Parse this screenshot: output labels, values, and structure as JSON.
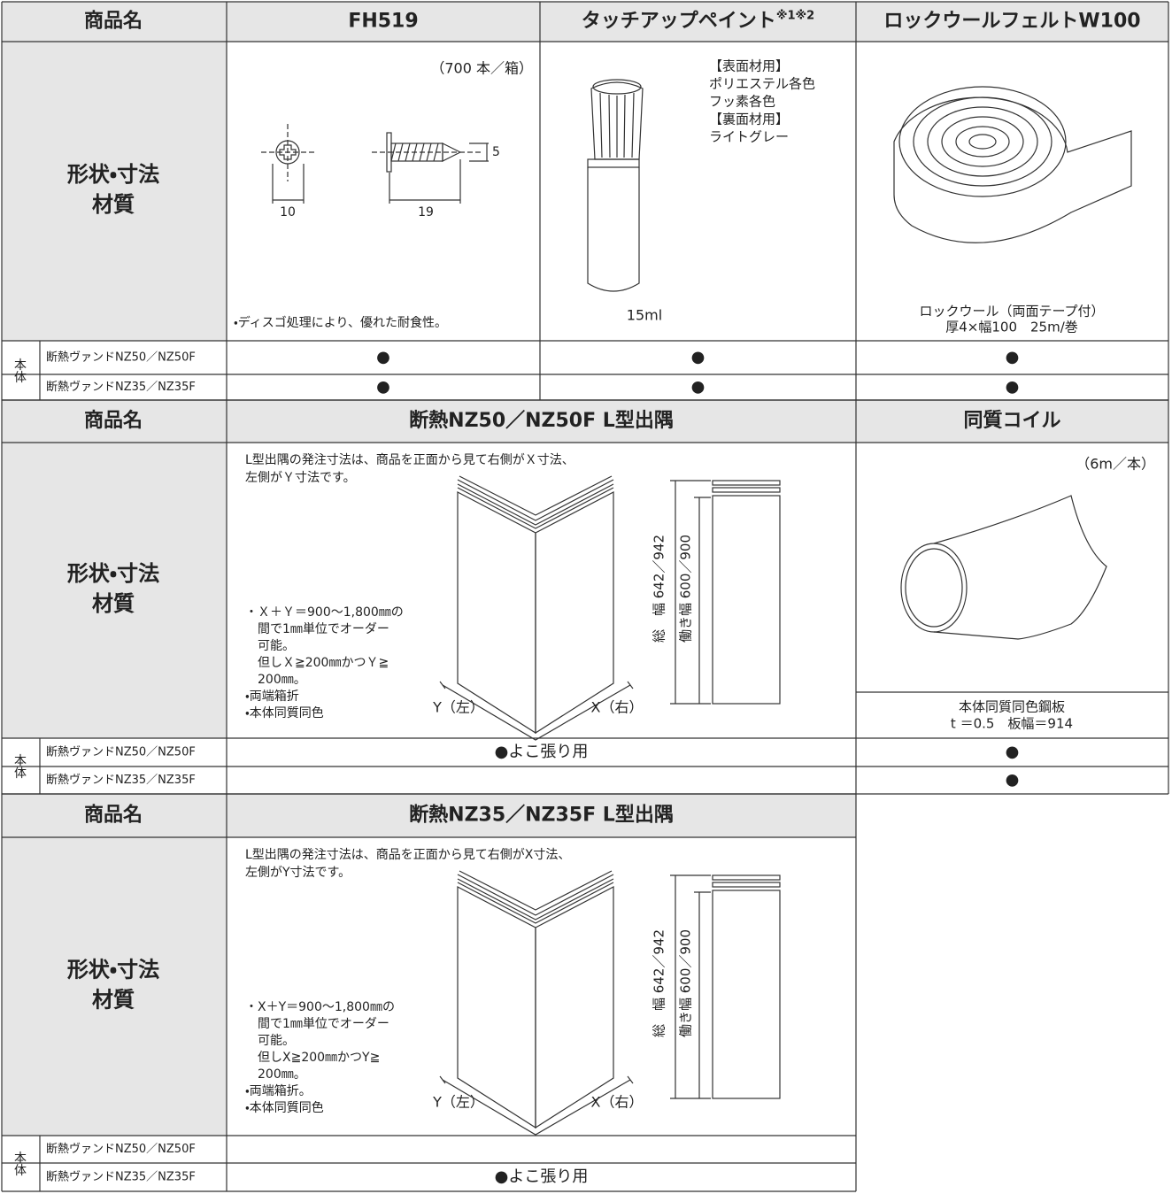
{
  "sections": [
    {
      "name_label": "商品名",
      "shape_label": [
        "形状・寸法",
        "材質"
      ],
      "body_label": "本体",
      "products": [
        {
          "name": "FH519",
          "note": "（700 本／箱）",
          "dims": [
            "5",
            "10",
            "19"
          ],
          "caption": "・ディスゴ処理により、優れた耐食性。"
        },
        {
          "name": "タッチアップペイント",
          "name_sup": "※1※2",
          "volume": "15ml",
          "colors": [
            "【表面材用】",
            "ポリエステル各色",
            "フッ素各色",
            "【裏面材用】",
            "ライトグレー"
          ]
        },
        {
          "name": "ロックウールフェルトW100",
          "caption": [
            "ロックウール（両面テープ付）",
            "厚4×幅100　25m/巻"
          ]
        }
      ],
      "rows": [
        {
          "label": "断熱ヴァンドNZ50／NZ50F",
          "cells": [
            "●",
            "●",
            "●"
          ]
        },
        {
          "label": "断熱ヴァンドNZ35／NZ35F",
          "cells": [
            "●",
            "●",
            "●"
          ]
        }
      ]
    },
    {
      "name_label": "商品名",
      "shape_label": [
        "形状・寸法",
        "材質"
      ],
      "body_label": "本体",
      "products": [
        {
          "name": "断熱NZ50／NZ50F L型出隅",
          "intro": [
            "L型出隅の発注寸法は、商品を正面から見て右側がＸ寸法、",
            "左側がＹ寸法です。"
          ],
          "notes": [
            "・Ｘ＋Ｙ＝900～1,800㎜の",
            "　間で1㎜単位でオーダー",
            "　可能。",
            "　但しＸ≧200㎜かつＹ≧",
            "　200㎜。",
            "・両端箱折",
            "・本体同質同色"
          ],
          "left": "Y（左）",
          "right": "X（右）",
          "total_width": "総　幅 642／942",
          "working_width": "働き幅 600／900"
        },
        {
          "name": "同質コイル",
          "note": "（6m／本）",
          "caption": [
            "本体同質同色鋼板",
            "t ＝0.5　板幅＝914"
          ]
        }
      ],
      "rows": [
        {
          "label": "断熱ヴァンドNZ50／NZ50F",
          "cells": [
            "●よこ張り用",
            "●"
          ]
        },
        {
          "label": "断熱ヴァンドNZ35／NZ35F",
          "cells": [
            null,
            "●"
          ]
        }
      ]
    },
    {
      "name_label": "商品名",
      "shape_label": [
        "形状・寸法",
        "材質"
      ],
      "body_label": "本体",
      "products": [
        {
          "name": "断熱NZ35／NZ35F L型出隅",
          "intro": [
            "L型出隅の発注寸法は、商品を正面から見て右側がX寸法、",
            "左側がY寸法です。"
          ],
          "notes": [
            "・X＋Y＝900～1,800㎜の",
            "　間で1㎜単位でオーダー",
            "　可能。",
            "　但しX≧200㎜かつY≧",
            "　200㎜。",
            "・両端箱折。",
            "・本体同質同色"
          ],
          "left": "Y（左）",
          "right": "X（右）",
          "total_width": "総　幅 642／942",
          "working_width": "働き幅 600／900"
        }
      ],
      "rows": [
        {
          "label": "断熱ヴァンドNZ50／NZ50F",
          "cells": [
            null
          ]
        },
        {
          "label": "断熱ヴァンドNZ35／NZ35F",
          "cells": [
            "●よこ張り用"
          ]
        }
      ]
    }
  ]
}
